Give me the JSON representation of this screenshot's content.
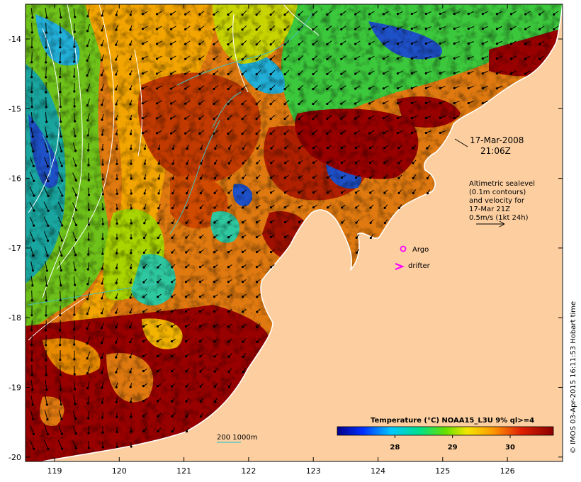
{
  "map": {
    "date_line1": "17-Mar-2008",
    "date_line2": "21:06Z",
    "altimetry_lines": [
      "Altimetric sealevel",
      "(0.1m contours)",
      "and velocity for",
      "17-Mar 21Z",
      "0.5m/s (1kt 24h)"
    ],
    "argo_label": "Argo",
    "drifter_label": "drifter",
    "scale_label": "200  1000m",
    "credit": "© IMOS 03-Apr-2015 16:11:53 Hobart time",
    "lon_ticks": [
      "119",
      "120",
      "121",
      "122",
      "123",
      "124",
      "125",
      "126"
    ],
    "lat_ticks": [
      "-14",
      "-15",
      "-16",
      "-17",
      "-18",
      "-19",
      "-20"
    ],
    "colors": {
      "land": "#fdcfa0",
      "warm": "#990000",
      "argo": "#ff00ff",
      "drifter": "#ff00ff",
      "isobath": "#40c0c0"
    }
  },
  "colorbar": {
    "title": "Temperature (°C) NOAA15_L3U 9% ql>=4",
    "ticks": [
      "28",
      "29",
      "30"
    ],
    "range": [
      27.0,
      30.75
    ]
  }
}
